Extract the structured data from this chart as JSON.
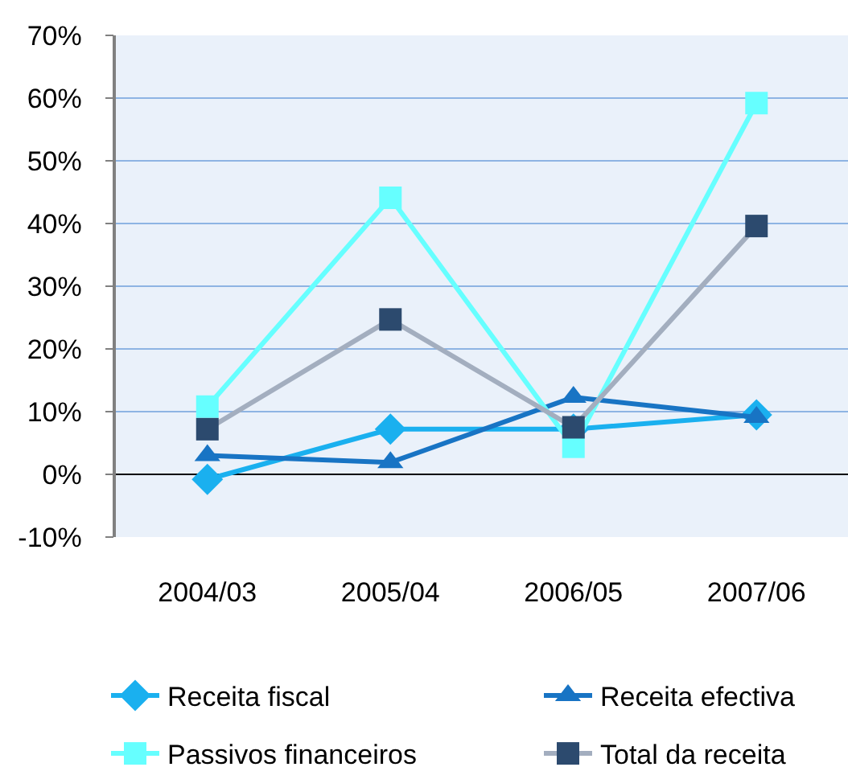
{
  "chart_data": {
    "type": "line",
    "categories": [
      "2004/03",
      "2005/04",
      "2006/05",
      "2007/06"
    ],
    "series": [
      {
        "name": "Receita fiscal",
        "color": "#1ab0ef",
        "marker": "diamond",
        "values": [
          -0.8,
          7.2,
          7.2,
          9.5
        ]
      },
      {
        "name": "Receita efectiva",
        "color": "#1874c4",
        "marker": "triangle",
        "values": [
          3.0,
          1.9,
          12.3,
          9.1
        ]
      },
      {
        "name": "Passivos financeiros",
        "color": "#66ffff",
        "marker": "square",
        "values": [
          10.8,
          44.1,
          4.4,
          59.2
        ]
      },
      {
        "name": "Total da receita",
        "color": "#a3aebf",
        "colors": [
          "#2c4a6e",
          "#2c4a6e",
          "#2c4a6e",
          "#2c4a6e"
        ],
        "marker": "square",
        "values": [
          7.2,
          24.7,
          7.5,
          39.6
        ]
      }
    ],
    "ylim": [
      -10,
      70
    ],
    "yticks": [
      {
        "value": -10,
        "label": "-10%"
      },
      {
        "value": 0,
        "label": "0%"
      },
      {
        "value": 10,
        "label": "10%"
      },
      {
        "value": 20,
        "label": "20%"
      },
      {
        "value": 30,
        "label": "30%"
      },
      {
        "value": 40,
        "label": "40%"
      },
      {
        "value": 50,
        "label": "50%"
      },
      {
        "value": 60,
        "label": "60%"
      },
      {
        "value": 70,
        "label": "70%"
      }
    ],
    "grid": "y",
    "legend": "bottom",
    "line_style": "solid"
  }
}
